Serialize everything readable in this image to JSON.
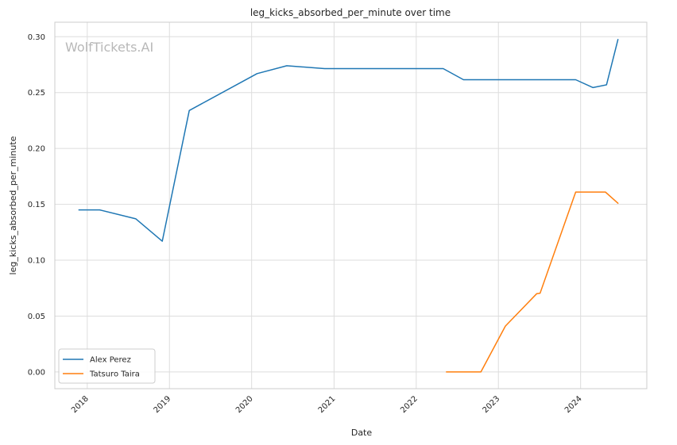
{
  "chart_data": {
    "type": "line",
    "title": "leg_kicks_absorbed_per_minute over time",
    "xlabel": "Date",
    "ylabel": "leg_kicks_absorbed_per_minute",
    "watermark": "WolfTickets.AI",
    "x_tick_labels": [
      "2018",
      "2019",
      "2020",
      "2021",
      "2022",
      "2023",
      "2024"
    ],
    "y_tick_labels": [
      "0.00",
      "0.05",
      "0.10",
      "0.15",
      "0.20",
      "0.25",
      "0.30"
    ],
    "xlim": [
      "2017-08-10",
      "2024-10-21"
    ],
    "ylim": [
      -0.015,
      0.313
    ],
    "grid": true,
    "legend_position": "lower-left",
    "series": [
      {
        "name": "Alex Perez",
        "color": "#1f77b4",
        "points": [
          [
            "2017-11-25",
            0.145
          ],
          [
            "2018-02-25",
            0.145
          ],
          [
            "2018-08-05",
            0.137
          ],
          [
            "2018-11-30",
            0.117
          ],
          [
            "2019-03-30",
            0.234
          ],
          [
            "2020-01-25",
            0.267
          ],
          [
            "2020-06-05",
            0.274
          ],
          [
            "2020-11-20",
            0.2715
          ],
          [
            "2022-05-01",
            0.2715
          ],
          [
            "2022-07-30",
            0.2615
          ],
          [
            "2023-12-10",
            0.2615
          ],
          [
            "2024-02-25",
            0.2545
          ],
          [
            "2024-04-25",
            0.257
          ],
          [
            "2024-06-15",
            0.2975
          ]
        ]
      },
      {
        "name": "Tatsuro Taira",
        "color": "#ff7f0e",
        "points": [
          [
            "2022-05-15",
            0.0
          ],
          [
            "2022-10-15",
            0.0
          ],
          [
            "2023-02-01",
            0.041
          ],
          [
            "2023-06-20",
            0.07
          ],
          [
            "2023-07-05",
            0.0705
          ],
          [
            "2023-12-10",
            0.161
          ],
          [
            "2024-04-20",
            0.161
          ],
          [
            "2024-06-15",
            0.151
          ]
        ]
      }
    ]
  }
}
